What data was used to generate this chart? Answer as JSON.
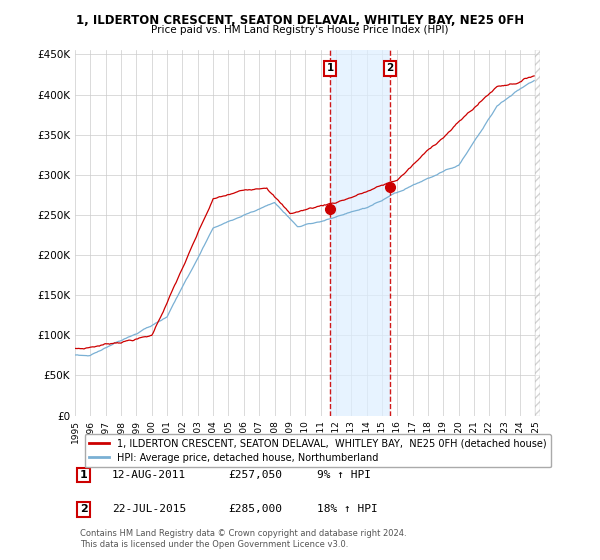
{
  "title1": "1, ILDERTON CRESCENT, SEATON DELAVAL, WHITLEY BAY, NE25 0FH",
  "title2": "Price paid vs. HM Land Registry's House Price Index (HPI)",
  "ylabel_ticks": [
    "£0",
    "£50K",
    "£100K",
    "£150K",
    "£200K",
    "£250K",
    "£300K",
    "£350K",
    "£400K",
    "£450K"
  ],
  "ylabel_values": [
    0,
    50000,
    100000,
    150000,
    200000,
    250000,
    300000,
    350000,
    400000,
    450000
  ],
  "x_start_year": 1995,
  "x_end_year": 2025,
  "sale1_price": 257050,
  "sale2_price": 285000,
  "sale1_year": 2011.625,
  "sale2_year": 2015.542,
  "line_color_red": "#cc0000",
  "line_color_blue": "#7ab0d4",
  "background_color": "#ffffff",
  "grid_color": "#cccccc",
  "shade_color": "#ddeeff",
  "legend_text_red": "1, ILDERTON CRESCENT, SEATON DELAVAL,  WHITLEY BAY,  NE25 0FH (detached house)",
  "legend_text_blue": "HPI: Average price, detached house, Northumberland",
  "footnote": "Contains HM Land Registry data © Crown copyright and database right 2024.\nThis data is licensed under the Open Government Licence v3.0."
}
